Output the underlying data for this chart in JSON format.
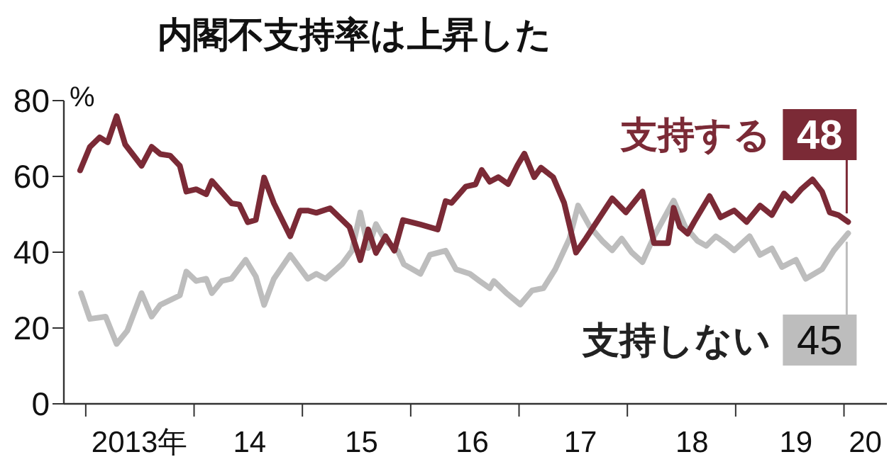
{
  "chart_data": {
    "type": "line",
    "title": "内閣不支持率は上昇した",
    "ylabel": "%",
    "ylim": [
      0,
      80
    ],
    "yticks": [
      0,
      20,
      40,
      60,
      80
    ],
    "xlim": [
      "2012-10-19",
      "2020-05-25"
    ],
    "xticks": [
      {
        "value": "2013-01-01",
        "label": null
      },
      {
        "value": "2014-01-01",
        "label": null
      },
      {
        "value": "2015-01-01",
        "label": null
      },
      {
        "value": "2016-01-01",
        "label": null
      },
      {
        "value": "2017-01-01",
        "label": null
      },
      {
        "value": "2018-01-01",
        "label": null
      },
      {
        "value": "2019-01-01",
        "label": null
      },
      {
        "value": "2020-01-01",
        "label": null
      },
      {
        "value": "2013-07-01",
        "label": "2013年"
      },
      {
        "value": "2014-07-07",
        "label": "14"
      },
      {
        "value": "2015-07-19",
        "label": "15"
      },
      {
        "value": "2016-07-27",
        "label": "16"
      },
      {
        "value": "2017-07-27",
        "label": "17"
      },
      {
        "value": "2018-08-07",
        "label": "18"
      },
      {
        "value": "2019-07-23",
        "label": "19"
      },
      {
        "value": "2020-03-13",
        "label": "20"
      }
    ],
    "grid": false,
    "legend": "right",
    "marker": "none",
    "line_style": "solid",
    "series": [
      {
        "name": "支持する",
        "color": "#7b2a36",
        "x": [
          "2012-12-13",
          "2013-01-15",
          "2013-02-17",
          "2013-03-16",
          "2013-04-15",
          "2013-05-14",
          "2013-07-08",
          "2013-08-11",
          "2013-09-09",
          "2013-10-12",
          "2013-11-14",
          "2013-12-06",
          "2014-01-08",
          "2014-02-11",
          "2014-03-02",
          "2014-05-07",
          "2014-06-02",
          "2014-07-01",
          "2014-07-28",
          "2014-08-25",
          "2014-09-27",
          "2014-11-21",
          "2014-12-24",
          "2015-01-19",
          "2015-02-17",
          "2015-04-04",
          "2015-06-09",
          "2015-07-15",
          "2015-08-11",
          "2015-09-06",
          "2015-10-08",
          "2015-11-07",
          "2015-12-06",
          "2016-02-03",
          "2016-04-01",
          "2016-04-28",
          "2016-05-18",
          "2016-07-05",
          "2016-08-07",
          "2016-08-28",
          "2016-09-24",
          "2016-10-23",
          "2016-11-25",
          "2016-12-27",
          "2017-01-19",
          "2017-02-21",
          "2017-03-16",
          "2017-04-26",
          "2017-06-02",
          "2017-07-12",
          "2017-08-14",
          "2017-11-11",
          "2017-12-27",
          "2018-02-21",
          "2018-04-01",
          "2018-05-18",
          "2018-06-06",
          "2018-06-27",
          "2018-07-23",
          "2018-08-14",
          "2018-10-05",
          "2018-11-11",
          "2018-12-27",
          "2019-02-07",
          "2019-03-24",
          "2019-05-03",
          "2019-06-13",
          "2019-07-08",
          "2019-08-11",
          "2019-09-17",
          "2019-10-19",
          "2019-11-14",
          "2019-12-13",
          "2020-01-15"
        ],
        "values": [
          61.6,
          67.8,
          70.3,
          69,
          75.9,
          68.4,
          62.8,
          67.8,
          65.9,
          65.5,
          62.8,
          56,
          56.6,
          55.3,
          58.8,
          52.9,
          52.6,
          47.9,
          48.5,
          59.7,
          52.9,
          44.2,
          51,
          51,
          50.4,
          51.6,
          46.6,
          37.9,
          46,
          39.8,
          44.2,
          40.4,
          48.5,
          47.3,
          46,
          53.5,
          53,
          57.3,
          57.9,
          61.7,
          58.6,
          59.8,
          58,
          63,
          66,
          59.8,
          62.3,
          59.8,
          53,
          39.9,
          43.6,
          54.2,
          50.5,
          56,
          42.4,
          42.4,
          51.7,
          46.7,
          44.9,
          48,
          54.8,
          49.2,
          51,
          48,
          52.3,
          49.8,
          55.5,
          53.6,
          56.7,
          59.2,
          56,
          50.5,
          49.8,
          48
        ],
        "value_labels": [
          null,
          null,
          null,
          null,
          null,
          null,
          null,
          null,
          null,
          null,
          null,
          null,
          null,
          null,
          null,
          null,
          null,
          null,
          null,
          null,
          null,
          null,
          null,
          null,
          null,
          null,
          null,
          null,
          null,
          null,
          null,
          null,
          null,
          null,
          null,
          null,
          null,
          null,
          null,
          null,
          null,
          null,
          null,
          null,
          null,
          null,
          null,
          null,
          null,
          null,
          null,
          null,
          null,
          null,
          null,
          null,
          null,
          null,
          null,
          null,
          null,
          null,
          null,
          null,
          null,
          null,
          null,
          null,
          null,
          null,
          null,
          null,
          null,
          "48"
        ]
      },
      {
        "name": "支持しない",
        "color": "#bdbdbd",
        "x": [
          "2012-12-16",
          "2013-01-15",
          "2013-03-09",
          "2013-04-15",
          "2013-05-21",
          "2013-07-08",
          "2013-08-11",
          "2013-09-09",
          "2013-11-14",
          "2013-12-06",
          "2014-01-08",
          "2014-02-11",
          "2014-03-02",
          "2014-04-04",
          "2014-05-07",
          "2014-06-24",
          "2014-07-28",
          "2014-08-25",
          "2014-09-27",
          "2014-11-21",
          "2015-01-19",
          "2015-02-17",
          "2015-03-20",
          "2015-05-14",
          "2015-06-17",
          "2015-07-15",
          "2015-08-11",
          "2015-09-06",
          "2015-10-08",
          "2015-11-18",
          "2015-12-09",
          "2016-02-03",
          "2016-03-06",
          "2016-04-28",
          "2016-06-02",
          "2016-07-19",
          "2016-08-21",
          "2016-09-24",
          "2016-10-08",
          "2016-11-18",
          "2017-01-05",
          "2017-02-14",
          "2017-03-24",
          "2017-05-03",
          "2017-06-20",
          "2017-07-19",
          "2017-08-28",
          "2017-10-08",
          "2017-11-11",
          "2017-12-13",
          "2018-01-15",
          "2018-02-21",
          "2018-04-01",
          "2018-06-06",
          "2018-07-15",
          "2018-08-25",
          "2018-09-24",
          "2018-10-26",
          "2018-11-28",
          "2018-12-27",
          "2019-02-17",
          "2019-03-24",
          "2019-05-03",
          "2019-06-06",
          "2019-07-23",
          "2019-08-25",
          "2019-10-19",
          "2019-11-28",
          "2020-01-15"
        ],
        "values": [
          29.2,
          22.4,
          23,
          15.8,
          19.3,
          29.2,
          23,
          26.1,
          28.6,
          34.9,
          32.4,
          33,
          29.2,
          32.4,
          33,
          38,
          33.6,
          26.1,
          33,
          39.3,
          33,
          34.3,
          33,
          36.8,
          40.4,
          50.5,
          41.1,
          47.4,
          43,
          40.4,
          36.8,
          34.3,
          39.3,
          40.4,
          35.5,
          34.3,
          32.4,
          30.5,
          32.4,
          29.3,
          26.2,
          29.9,
          30.5,
          35.5,
          43.6,
          52.3,
          46.7,
          43,
          40.5,
          43.6,
          40,
          37.4,
          44.2,
          53.6,
          46.7,
          43,
          41.7,
          44.2,
          42.4,
          40.5,
          44.2,
          39.3,
          41,
          36.1,
          38,
          33,
          35.5,
          40.5,
          45
        ],
        "value_labels": [
          null,
          null,
          null,
          null,
          null,
          null,
          null,
          null,
          null,
          null,
          null,
          null,
          null,
          null,
          null,
          null,
          null,
          null,
          null,
          null,
          null,
          null,
          null,
          null,
          null,
          null,
          null,
          null,
          null,
          null,
          null,
          null,
          null,
          null,
          null,
          null,
          null,
          null,
          null,
          null,
          null,
          null,
          null,
          null,
          null,
          null,
          null,
          null,
          null,
          null,
          null,
          null,
          null,
          null,
          null,
          null,
          null,
          null,
          null,
          null,
          null,
          null,
          null,
          null,
          null,
          null,
          null,
          null,
          "45"
        ]
      }
    ]
  }
}
